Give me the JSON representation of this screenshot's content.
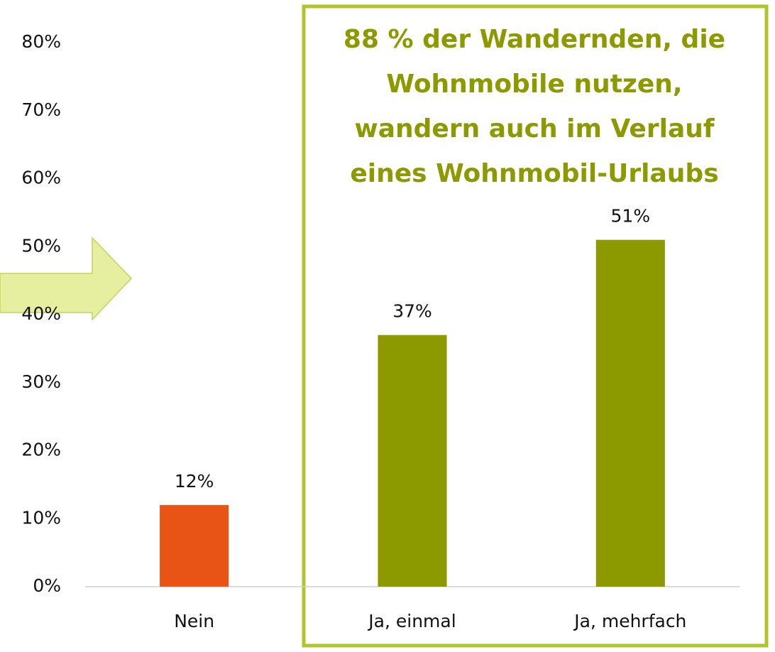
{
  "chart_data": {
    "type": "bar",
    "categories": [
      "Nein",
      "Ja, einmal",
      "Ja, mehrfach"
    ],
    "values": [
      12,
      37,
      51
    ],
    "value_labels": [
      "12%",
      "37%",
      "51%"
    ],
    "colors": [
      "#e85415",
      "#8c9a00",
      "#8c9a00"
    ],
    "ylim": [
      0,
      80
    ],
    "yticks": [
      {
        "value": 0,
        "label": "0%"
      },
      {
        "value": 10,
        "label": "10%"
      },
      {
        "value": 20,
        "label": "20%"
      },
      {
        "value": 30,
        "label": "30%"
      },
      {
        "value": 40,
        "label": "40%"
      },
      {
        "value": 50,
        "label": "50%"
      },
      {
        "value": 60,
        "label": "60%"
      },
      {
        "value": 70,
        "label": "70%"
      },
      {
        "value": 80,
        "label": "80%"
      }
    ],
    "grid": false,
    "annotation": [
      "88 % der Wandernden, die",
      "Wohnmobile nutzen,",
      "wandern auch im Verlauf",
      "eines Wohnmobil-Urlaubs"
    ]
  }
}
